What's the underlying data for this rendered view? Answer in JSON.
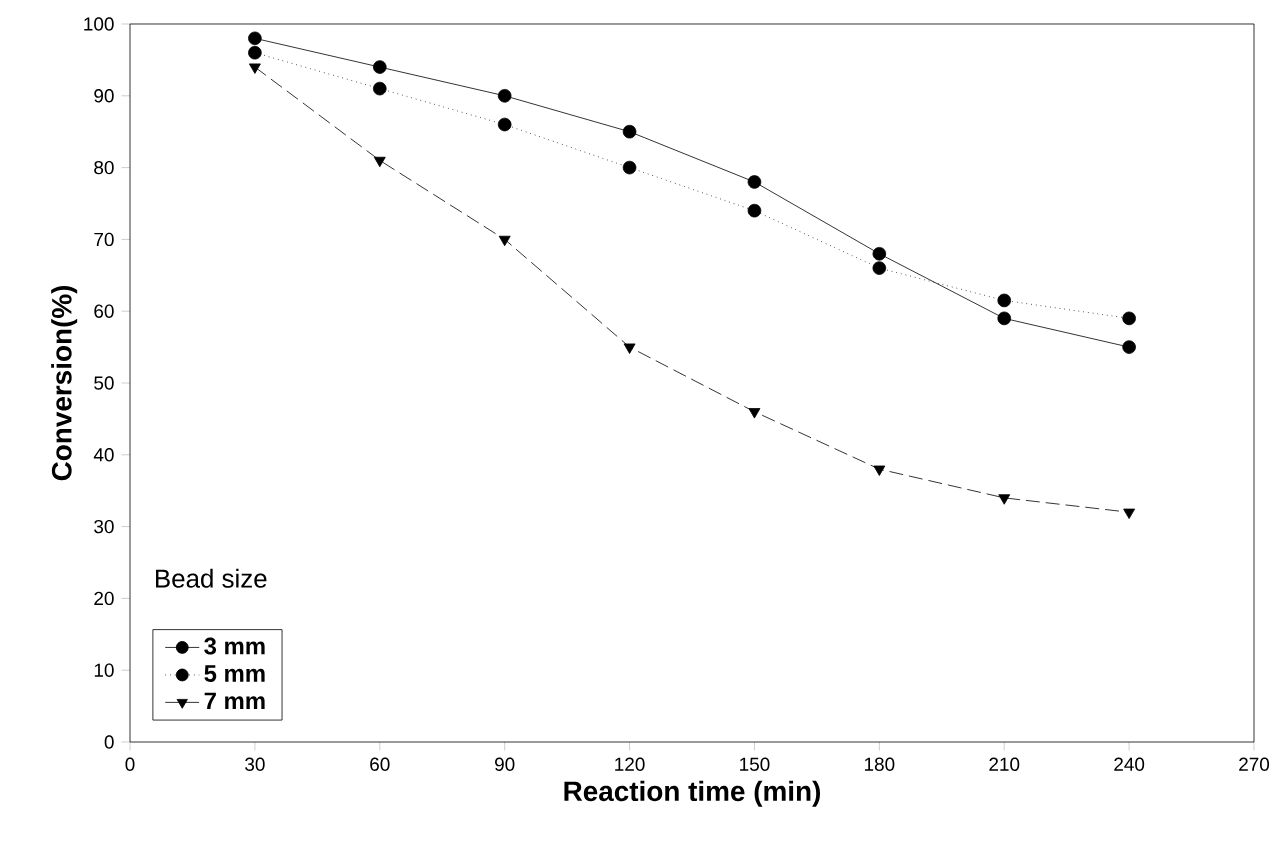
{
  "chart_data": {
    "type": "line",
    "xlabel": "Reaction time (min)",
    "ylabel": "Conversion(%)",
    "legend_title": "Bead size",
    "legend": "bottom left",
    "grid": false,
    "x": [
      30,
      60,
      90,
      120,
      150,
      180,
      210,
      240
    ],
    "series": [
      {
        "name": "3 mm",
        "color": "#000000",
        "marker": "circle",
        "line_style": "solid",
        "values": [
          98,
          94,
          90,
          85,
          78,
          68,
          59,
          55
        ]
      },
      {
        "name": "5 mm",
        "color": "#000000",
        "marker": "circle",
        "line_style": "dotted",
        "values": [
          96,
          91,
          86,
          80,
          74,
          66,
          61.5,
          59
        ]
      },
      {
        "name": "7 mm",
        "color": "#000000",
        "marker": "triangle",
        "line_style": "dashed",
        "values": [
          94,
          81,
          70,
          55,
          46,
          38,
          34,
          32
        ]
      }
    ],
    "xlim": [
      0,
      270
    ],
    "xticks": [
      0,
      30,
      60,
      90,
      120,
      150,
      180,
      210,
      240,
      270
    ],
    "ylim": [
      0,
      100
    ],
    "yticks": [
      0,
      10,
      20,
      30,
      40,
      50,
      60,
      70,
      80,
      90,
      100
    ]
  }
}
